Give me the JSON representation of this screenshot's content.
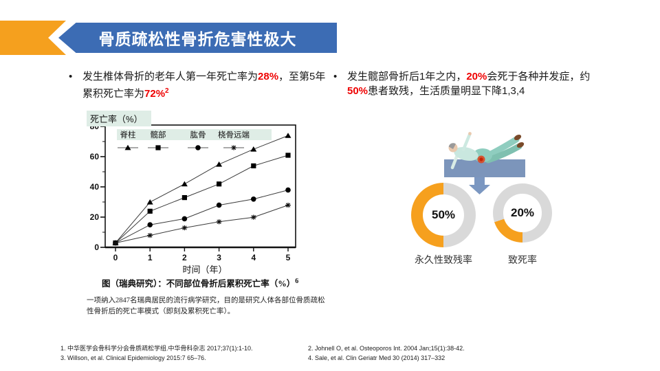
{
  "title_banner": {
    "title": "骨质疏松性骨折危害性极大"
  },
  "colors": {
    "banner_blue": "#3C6CB4",
    "banner_orange": "#F5A01E",
    "emphasis_red": "#EE0000",
    "legend_bg": "#DFEDE6",
    "donut_orange": "#F6A01E",
    "donut_gray": "#D9D9D9",
    "arrow_blue": "#7B97C1",
    "platform_blue": "#7C95BB"
  },
  "bullets": {
    "left": {
      "seg1": "发生椎体骨折的老年人第一年死亡率为",
      "em1": "28%",
      "seg2": "，至第5年累积死亡率为",
      "em2": "72%",
      "sup": "2"
    },
    "right": {
      "seg1": "发生髋部骨折后1年之内，",
      "em1": "20%",
      "seg2": "会死于各种并发症，约",
      "em2": "50%",
      "seg3": "患者致残，生活质量明显下降1,3,4"
    }
  },
  "chart_data": {
    "type": "line",
    "x": [
      0,
      1,
      2,
      3,
      4,
      5
    ],
    "series": [
      {
        "name": "脊柱",
        "marker": "triangle",
        "values": [
          2,
          29,
          41,
          54,
          64,
          73
        ]
      },
      {
        "name": "髋部",
        "marker": "square",
        "values": [
          2,
          23,
          32,
          41,
          53,
          60
        ]
      },
      {
        "name": "肱骨",
        "marker": "circle",
        "values": [
          2,
          14,
          18,
          27,
          31,
          37
        ]
      },
      {
        "name": "桡骨远端",
        "marker": "star",
        "values": [
          2,
          7,
          12,
          16,
          19,
          27
        ]
      }
    ],
    "ylabel": "死亡率（%）",
    "xlabel": "时间（年）",
    "ylim": [
      0,
      80
    ],
    "yticks": [
      0,
      20,
      40,
      60,
      80
    ],
    "xticks": [
      0,
      1,
      2,
      3,
      4,
      5
    ],
    "grid": false,
    "legend_position": "top-inside"
  },
  "chart_caption": {
    "text": "图（瑞典研究）：不同部位骨折后累积死亡率（%）",
    "sup": "6"
  },
  "chart_note": "一项纳入2847名瑞典居民的流行病学研究，目的是研究人体各部位骨质疏松性骨折后的死亡率模式（即刻及累积死亡率）。",
  "figure": {
    "donuts": [
      {
        "value": "50%",
        "label": "永久性致残率",
        "percent": 50
      },
      {
        "value": "20%",
        "label": "致死率",
        "percent": 20
      }
    ]
  },
  "references": {
    "col1": [
      "1. 中华医学会骨科学分会骨质疏松学组.中华骨科杂志 2017;37(1):1-10.",
      "3. Willson, et al. Clinical Epidemiology 2015:7 65–76."
    ],
    "col2": [
      "2. Johnell O, et al. Osteoporos Int. 2004 Jan;15(1):38-42.",
      "4. Sale, et al. Clin Geriatr Med 30 (2014) 317–332"
    ]
  }
}
